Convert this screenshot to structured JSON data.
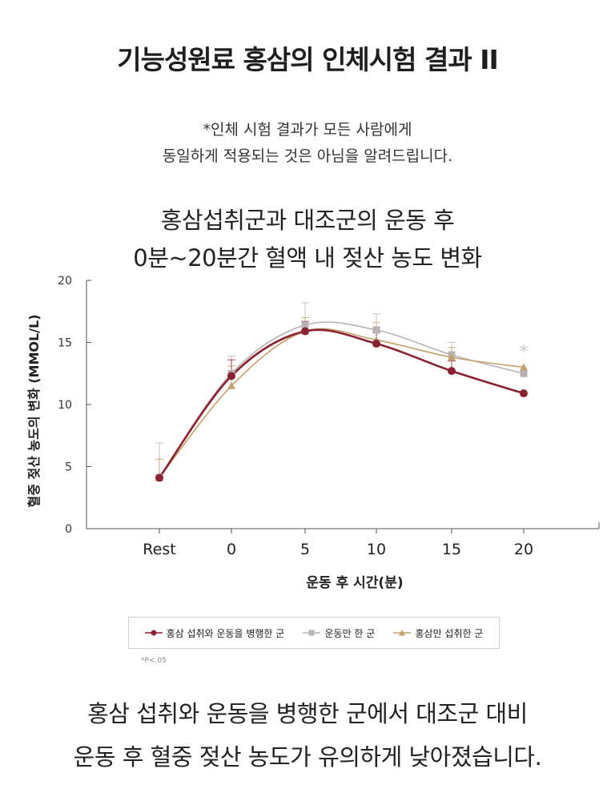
{
  "title": "기능성원료 홍삼의 인체시험 결과 II",
  "disclaimer": {
    "line1": "*인체 시험 결과가 모든 사람에게",
    "line2": "동일하게 적용되는 것은 아님을 알려드립니다."
  },
  "chart_heading": {
    "line1": "홍삼섭취군과 대조군의 운동 후",
    "line2": "0분~20분간 혈액 내 젖산 농도 변화"
  },
  "chart_data": {
    "type": "line",
    "categories": [
      "Rest",
      "0",
      "5",
      "10",
      "15",
      "20"
    ],
    "xlabel": "운동 후 시간(분)",
    "ylabel": "혈중 젖산 농도의 변화 (MMOL/L)",
    "ylim": [
      0,
      20
    ],
    "yticks": [
      "0",
      "5",
      "10",
      "15",
      "20"
    ],
    "grid": false,
    "legend_position": "bottom",
    "series": [
      {
        "name": "홍삼 섭취와 운동을 병행한 군",
        "values": [
          4.1,
          12.3,
          15.9,
          14.9,
          12.7,
          10.9
        ],
        "errors": [
          0.0,
          1.3,
          0.8,
          0.9,
          0.8,
          0.0
        ],
        "color": "#8b2232",
        "marker": "circle"
      },
      {
        "name": "운동만 한 군",
        "values": [
          4.1,
          12.5,
          16.4,
          16.0,
          14.0,
          12.5
        ],
        "errors": [
          2.8,
          1.4,
          1.8,
          1.3,
          1.0,
          0.0
        ],
        "color": "#b9b2b5",
        "marker": "square"
      },
      {
        "name": "홍삼만 섭취한 군",
        "values": [
          4.1,
          11.5,
          15.9,
          15.2,
          13.8,
          13.0
        ],
        "errors": [
          1.5,
          1.6,
          1.1,
          1.4,
          0.8,
          0.0
        ],
        "color": "#c4a06c",
        "marker": "triangle"
      }
    ],
    "annotation": "*"
  },
  "footnote": "*P<.05",
  "conclusion": {
    "line1": "홍삼 섭취와 운동을 병행한 군에서 대조군 대비",
    "line2": "운동 후 혈중 젖산 농도가 유의하게 낮아졌습니다."
  }
}
